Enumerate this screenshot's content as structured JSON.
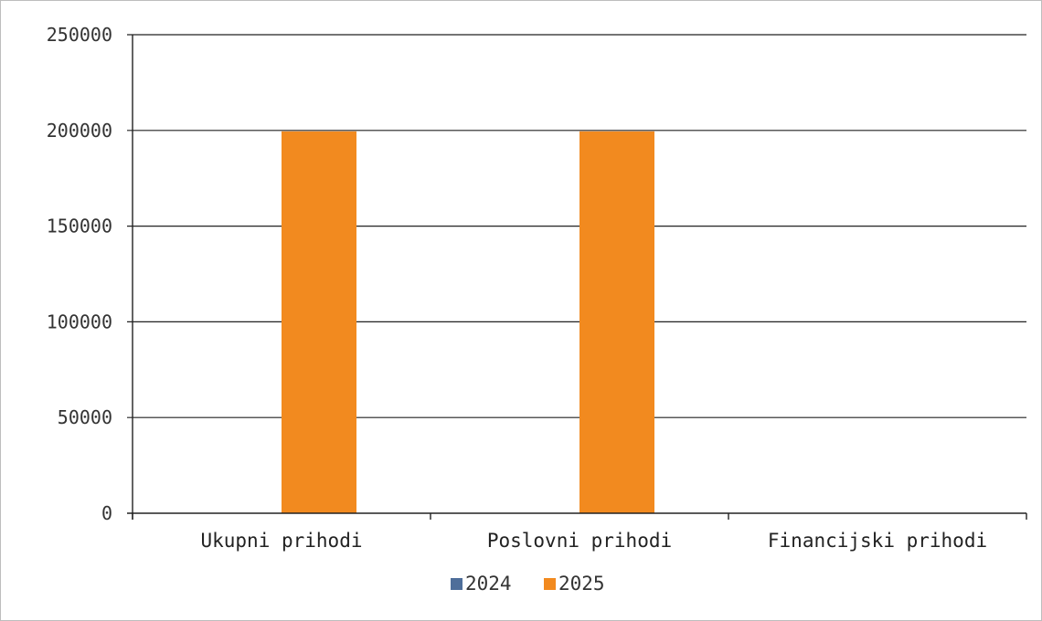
{
  "chart_data": {
    "type": "bar",
    "categories": [
      "Ukupni prihodi",
      "Poslovni prihodi",
      "Financijski prihodi"
    ],
    "series": [
      {
        "name": "2024",
        "values": [
          0,
          0,
          0
        ],
        "color": "#4e6e9a"
      },
      {
        "name": "2025",
        "values": [
          199500,
          199500,
          0
        ],
        "color": "#f28a1f"
      }
    ],
    "ylim": [
      0,
      250000
    ],
    "yticks": [
      "0",
      "50000",
      "100000",
      "150000",
      "200000",
      "250000"
    ],
    "ytick_values": [
      0,
      50000,
      100000,
      150000,
      200000,
      250000
    ],
    "grid": true,
    "legend": "bottom-center"
  }
}
